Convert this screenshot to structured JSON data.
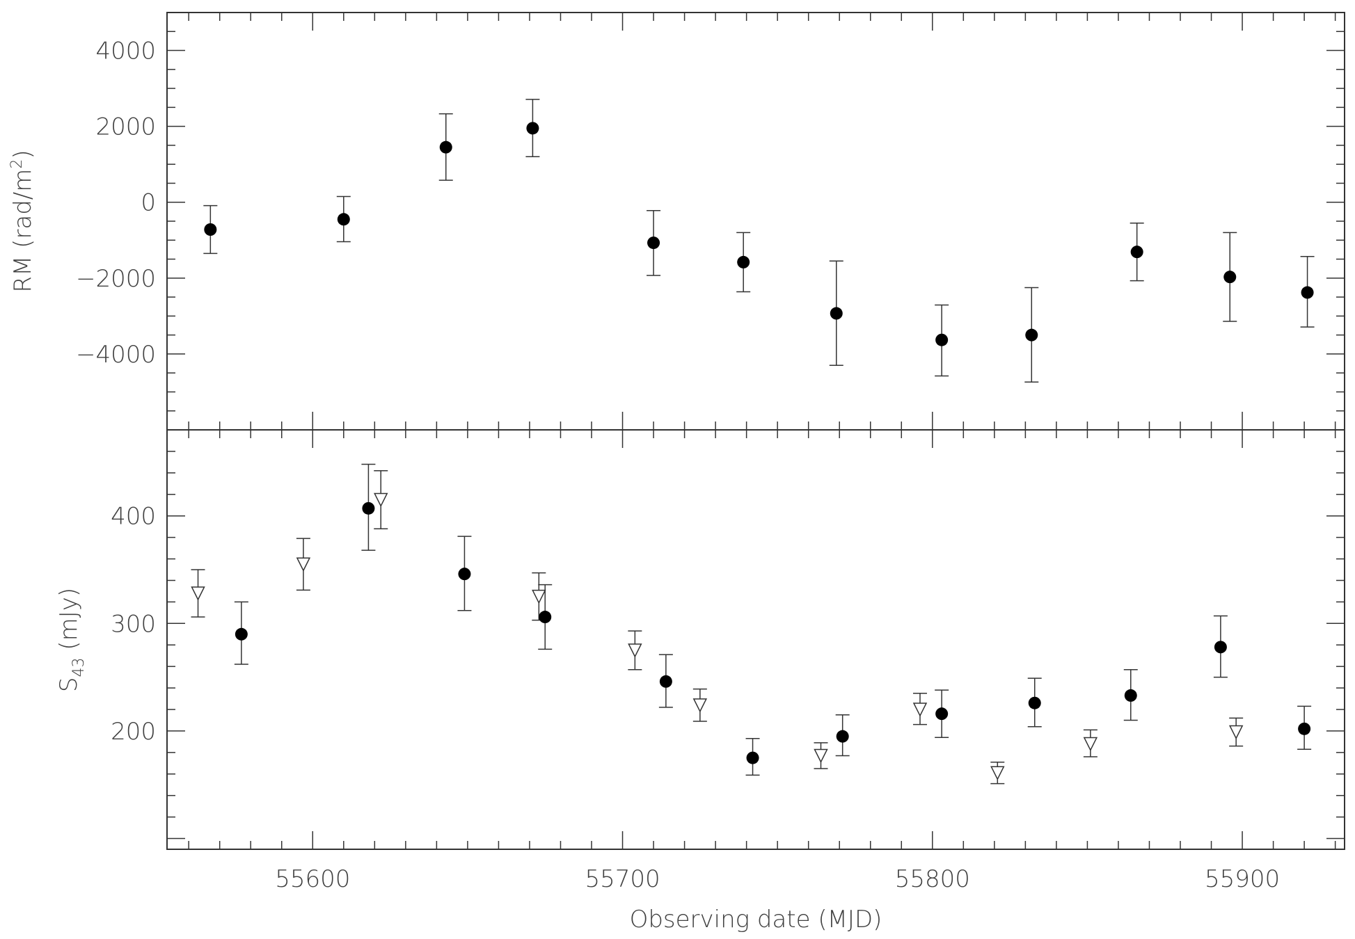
{
  "chart_data": [
    {
      "type": "scatter",
      "panel": "top",
      "title": "",
      "xlabel": "",
      "ylabel": "RM (rad/m²)",
      "ylabel_main": "RM (rad/m",
      "ylabel_sup": "2",
      "ylabel_end": ")",
      "xlim": [
        55553,
        55933
      ],
      "ylim": [
        -6000,
        5000
      ],
      "yticks": [
        4000,
        2000,
        0,
        -2000,
        -4000
      ],
      "ytick_labels": [
        "4000",
        "2000",
        "0",
        "−2000",
        "−4000"
      ],
      "grid": false,
      "series": [
        {
          "marker": "filled-circle",
          "x": [
            55567,
            55610,
            55643,
            55671,
            55710,
            55739,
            55769,
            55803,
            55832,
            55866,
            55896,
            55921
          ],
          "y": [
            -720,
            -450,
            1450,
            1950,
            -1070,
            -1580,
            -2930,
            -3630,
            -3500,
            -1310,
            -1970,
            -2380
          ],
          "err_lo": [
            630,
            590,
            870,
            750,
            860,
            780,
            1370,
            950,
            1240,
            760,
            1170,
            910
          ],
          "err_hi": [
            630,
            600,
            880,
            760,
            850,
            780,
            1380,
            920,
            1250,
            760,
            1170,
            950
          ]
        }
      ]
    },
    {
      "type": "scatter",
      "panel": "bottom",
      "title": "",
      "xlabel": "Observing date (MJD)",
      "ylabel": "S43 (mJy)",
      "ylabel_main": "S",
      "ylabel_sub": "43",
      "ylabel_end": " (mJy)",
      "xlim": [
        55553,
        55933
      ],
      "ylim": [
        90,
        480
      ],
      "xticks": [
        55600,
        55700,
        55800,
        55900
      ],
      "xtick_labels": [
        "55600",
        "55700",
        "55800",
        "55900"
      ],
      "yticks": [
        400,
        300,
        200
      ],
      "ytick_labels": [
        "400",
        "300",
        "200"
      ],
      "grid": false,
      "series": [
        {
          "marker": "filled-circle",
          "x": [
            55577,
            55618,
            55649,
            55675,
            55714,
            55742,
            55771,
            55803,
            55833,
            55864,
            55893,
            55920
          ],
          "y": [
            290,
            407,
            346,
            306,
            246,
            175,
            195,
            216,
            226,
            233,
            278,
            202
          ],
          "err_lo": [
            28,
            39,
            34,
            30,
            24,
            16,
            18,
            22,
            22,
            23,
            28,
            19
          ],
          "err_hi": [
            30,
            41,
            35,
            30,
            25,
            18,
            20,
            22,
            23,
            24,
            29,
            21
          ]
        },
        {
          "marker": "open-triangle-down",
          "x": [
            55563,
            55597,
            55622,
            55673,
            55704,
            55725,
            55764,
            55796,
            55821,
            55851,
            55898
          ],
          "y": [
            328,
            355,
            415,
            325,
            275,
            224,
            177,
            220,
            161,
            188,
            199
          ],
          "err_lo": [
            22,
            24,
            27,
            22,
            18,
            15,
            12,
            14,
            10,
            12,
            13
          ],
          "err_hi": [
            22,
            24,
            27,
            22,
            18,
            15,
            12,
            15,
            10,
            13,
            13
          ]
        }
      ]
    }
  ]
}
